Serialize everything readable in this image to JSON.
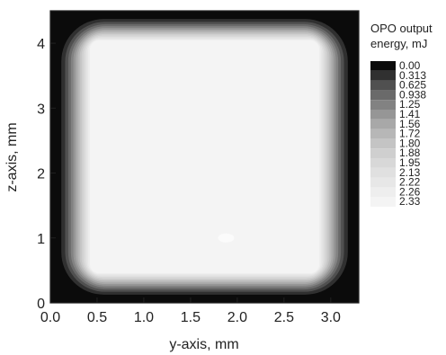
{
  "chart_data": {
    "type": "heatmap",
    "title": "",
    "xlabel": "y-axis, mm",
    "ylabel": "z-axis, mm",
    "xlim": [
      0.0,
      3.3
    ],
    "ylim": [
      0.0,
      4.5
    ],
    "x_ticks": [
      "0.0",
      "0.5",
      "1.0",
      "1.5",
      "2.0",
      "2.5",
      "3.0"
    ],
    "y_ticks": [
      "0",
      "1",
      "2",
      "3",
      "4"
    ],
    "grid": false,
    "legend_title_lines": [
      "OPO output",
      "energy, mJ"
    ],
    "levels": [
      "0.00",
      "0.313",
      "0.625",
      "0.938",
      "1.25",
      "1.41",
      "1.56",
      "1.72",
      "1.80",
      "1.88",
      "1.95",
      "2.13",
      "2.22",
      "2.26",
      "2.33"
    ],
    "level_colors": [
      "#0b0b0b",
      "#303030",
      "#505050",
      "#6a6a6a",
      "#828282",
      "#969696",
      "#a8a8a8",
      "#b7b7b7",
      "#c4c4c4",
      "#cfcfcf",
      "#d8d8d8",
      "#e0e0e0",
      "#e7e7e7",
      "#eeeeee",
      "#f4f4f4"
    ],
    "legend_placement": "right",
    "description": "Beam energy map: near-uniform high energy (~2.13–2.33 mJ) over the interior, falling steeply to 0 at the edges and corners."
  }
}
